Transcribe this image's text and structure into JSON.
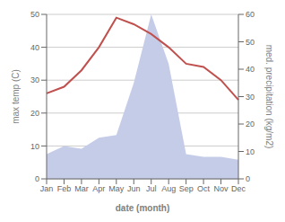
{
  "chart_data": {
    "type": "line",
    "categories": [
      "Jan",
      "Feb",
      "Mar",
      "Apr",
      "May",
      "Jun",
      "Jul",
      "Aug",
      "Sep",
      "Oct",
      "Nov",
      "Dec"
    ],
    "xlabel": "date (month)",
    "ylabel": "max temp (C)",
    "y2label": "med. precipitation (kg/m2)",
    "ylim": [
      0,
      50
    ],
    "yticks": [
      0,
      10,
      20,
      30,
      40,
      50
    ],
    "y2lim": [
      0,
      60
    ],
    "y2ticks": [
      0,
      10,
      20,
      30,
      40,
      50,
      60
    ],
    "grid": true,
    "series": [
      {
        "type": "area",
        "axis": "y2",
        "color": "#c5cce8",
        "values": [
          9,
          12,
          11,
          15,
          16,
          35,
          60,
          42,
          9,
          8,
          8,
          7
        ]
      },
      {
        "type": "line",
        "color": "#c0504d",
        "values": [
          26,
          28,
          33,
          40,
          49,
          47,
          44,
          40,
          35,
          34,
          30,
          24
        ]
      }
    ]
  }
}
